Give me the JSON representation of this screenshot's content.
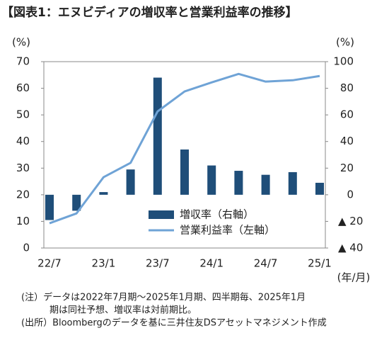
{
  "chart_data": {
    "type": "bar-line",
    "title": "【図表1：エヌビディアの増収率と営業利益率の推移】",
    "y_label": "(%)",
    "y2_label": "(%)",
    "x_label": "(年/月)",
    "categories": [
      "22/7",
      null,
      "23/1",
      null,
      "23/7",
      null,
      "24/1",
      null,
      "24/7",
      null,
      "25/1"
    ],
    "series": [
      {
        "name": "増収率（右軸）",
        "type": "bar",
        "axis": "y2",
        "color": "#1f4e79",
        "values": [
          -19,
          -12,
          2,
          19,
          88,
          34,
          22,
          18,
          15,
          17,
          9
        ]
      },
      {
        "name": "営業利益率（左軸）",
        "type": "line",
        "axis": "y",
        "color": "#6fa3d6",
        "values": [
          9.3,
          13,
          26.6,
          32,
          51.3,
          58.8,
          62.2,
          65.4,
          62.5,
          63,
          64.6
        ]
      }
    ],
    "ylim": [
      0,
      70
    ],
    "yticks": [
      0,
      10,
      20,
      30,
      40,
      50,
      60,
      70
    ],
    "y2lim": [
      -40,
      100
    ],
    "y2ticks": [
      {
        "value": -40,
        "label": "▲ 40"
      },
      {
        "value": -20,
        "label": "▲ 20"
      },
      0,
      20,
      40,
      60,
      80,
      100
    ],
    "legend": "lower-right",
    "notes": [
      "(注）データは2022年7月期～2025年1月期、四半期毎、2025年1月",
      "期は同社予想、増収率は対前期比。",
      "(出所）Bloombergのデータを基に三井住友DSアセットマネジメント作成"
    ]
  }
}
